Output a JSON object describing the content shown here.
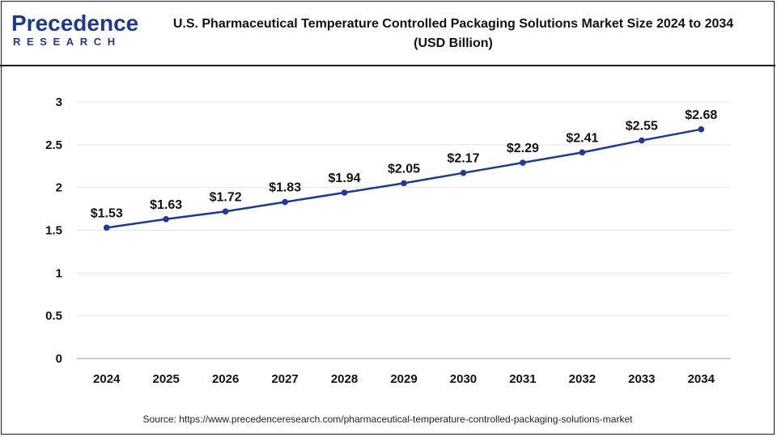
{
  "header": {
    "logo_main": "Precedence",
    "logo_sub": "RESEARCH",
    "title_line1": "U.S. Pharmaceutical Temperature Controlled Packaging Solutions Market Size 2024 to 2034",
    "title_line2": "(USD Billion)"
  },
  "footer": {
    "source": "Source: https://www.precedenceresearch.com/pharmaceutical-temperature-controlled-packaging-solutions-market"
  },
  "colors": {
    "line": "#1f3a93",
    "grid": "#e6e6e6",
    "axis": "#999999",
    "brand": "#1f3a8a"
  },
  "chart_data": {
    "type": "line",
    "title": "U.S. Pharmaceutical Temperature Controlled Packaging Solutions Market Size 2024 to 2034 (USD Billion)",
    "xlabel": "",
    "ylabel": "",
    "categories": [
      "2024",
      "2025",
      "2026",
      "2027",
      "2028",
      "2029",
      "2030",
      "2031",
      "2032",
      "2033",
      "2034"
    ],
    "values": [
      1.53,
      1.63,
      1.72,
      1.83,
      1.94,
      2.05,
      2.17,
      2.29,
      2.41,
      2.55,
      2.68
    ],
    "data_labels": [
      "$1.53",
      "$1.63",
      "$1.72",
      "$1.83",
      "$1.94",
      "$2.05",
      "$2.17",
      "$2.29",
      "$2.41",
      "$2.55",
      "$2.68"
    ],
    "ylim": [
      0,
      3
    ],
    "yticks": [
      0,
      0.5,
      1,
      1.5,
      2,
      2.5,
      3
    ],
    "ytick_labels": [
      "0",
      "0.5",
      "1",
      "1.5",
      "2",
      "2.5",
      "3"
    ],
    "grid": true,
    "legend": "none"
  }
}
